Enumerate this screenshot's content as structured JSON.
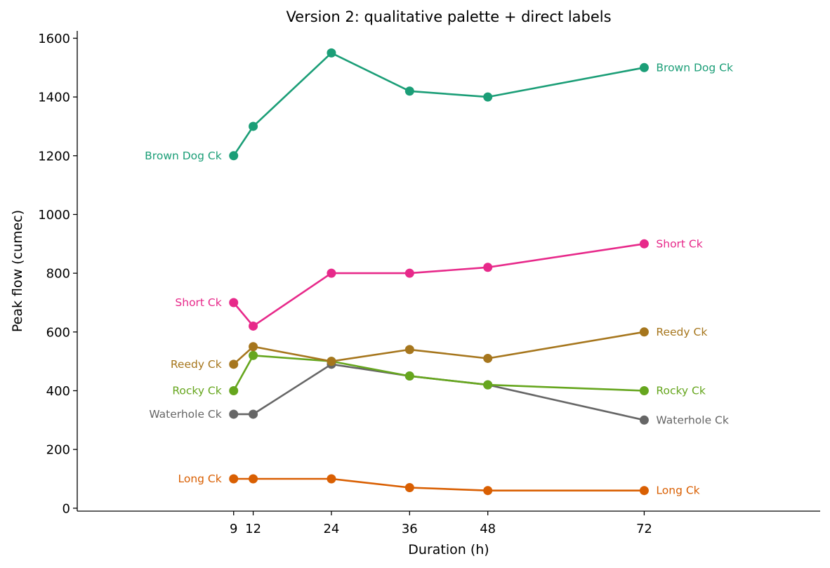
{
  "chart_data": {
    "type": "line",
    "title": "Version 2: qualitative palette + direct labels",
    "xlabel": "Duration (h)",
    "ylabel": "Peak flow (cumec)",
    "x": [
      9,
      12,
      24,
      36,
      48,
      72
    ],
    "xticks": [
      9,
      12,
      24,
      36,
      48,
      72
    ],
    "yticks": [
      0,
      200,
      400,
      600,
      800,
      1000,
      1200,
      1400,
      1600
    ],
    "xlim": [
      -15,
      99
    ],
    "ylim": [
      -10,
      1625
    ],
    "grid": false,
    "legend": "none (direct labels at both ends of each line)",
    "series": [
      {
        "name": "Brown Dog Ck",
        "color": "#1b9e77",
        "values": [
          1200,
          1300,
          1550,
          1420,
          1400,
          1500
        ]
      },
      {
        "name": "Long Ck",
        "color": "#d95f02",
        "values": [
          100,
          100,
          100,
          70,
          60,
          60
        ]
      },
      {
        "name": "Waterhole Ck",
        "color": "#666666",
        "values": [
          320,
          320,
          490,
          450,
          420,
          300
        ]
      },
      {
        "name": "Short Ck",
        "color": "#e7298a",
        "values": [
          700,
          620,
          800,
          800,
          820,
          900
        ]
      },
      {
        "name": "Rocky Ck",
        "color": "#66a61e",
        "values": [
          400,
          520,
          500,
          450,
          420,
          400
        ]
      },
      {
        "name": "Reedy Ck",
        "color": "#a6761d",
        "values": [
          490,
          550,
          500,
          540,
          510,
          600
        ]
      }
    ]
  }
}
